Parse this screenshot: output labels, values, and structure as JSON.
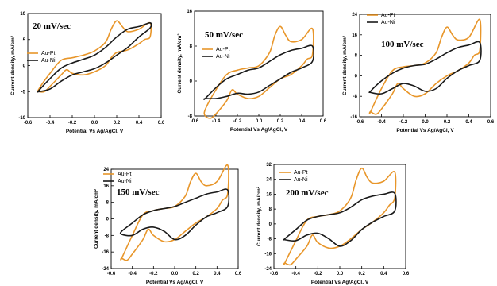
{
  "colors": {
    "au_pt": "#E8962A",
    "au_ni": "#1a1a1a"
  },
  "chart_data": [
    {
      "type": "line",
      "scan_label": "20 mV/sec",
      "xlabel": "Potential Vs Ag/AgCl, V",
      "ylabel": "Current density, mA/cm²",
      "xlim": [
        -0.6,
        0.6
      ],
      "ylim": [
        -10,
        10
      ],
      "xticks": [
        -0.6,
        -0.4,
        -0.2,
        0.0,
        0.2,
        0.4,
        0.6
      ],
      "yticks": [
        -10,
        -5,
        0,
        5,
        10
      ],
      "legend": [
        "Au-Pt",
        "Au-Ni"
      ],
      "series": [
        {
          "name": "Au-Pt",
          "x": [
            -0.5,
            -0.4,
            -0.3,
            -0.2,
            -0.1,
            0.0,
            0.1,
            0.15,
            0.2,
            0.25,
            0.3,
            0.4,
            0.5,
            0.5,
            0.45,
            0.4,
            0.3,
            0.2,
            0.15,
            0.1,
            0.0,
            -0.1,
            -0.2,
            -0.25,
            -0.3,
            -0.4,
            -0.45,
            -0.5
          ],
          "y": [
            -4.5,
            -1.5,
            1.0,
            1.5,
            2.0,
            2.8,
            4.5,
            7.0,
            8.6,
            7.5,
            6.5,
            7.0,
            8.2,
            5.5,
            5.0,
            4.2,
            3.0,
            2.5,
            1.5,
            0.0,
            -1.2,
            -1.8,
            -1.5,
            -0.8,
            -1.8,
            -4.0,
            -5.0,
            -5.0
          ]
        },
        {
          "name": "Au-Ni",
          "x": [
            -0.5,
            -0.4,
            -0.3,
            -0.2,
            -0.1,
            0.0,
            0.1,
            0.2,
            0.3,
            0.4,
            0.5,
            0.5,
            0.4,
            0.3,
            0.2,
            0.1,
            0.0,
            -0.1,
            -0.2,
            -0.3,
            -0.4,
            -0.5
          ],
          "y": [
            -4.8,
            -2.5,
            -0.5,
            0.5,
            1.2,
            2.0,
            3.5,
            5.5,
            7.0,
            7.5,
            8.2,
            7.2,
            5.5,
            3.5,
            2.0,
            0.5,
            -0.6,
            -1.2,
            -1.8,
            -3.0,
            -4.5,
            -5.0
          ]
        }
      ]
    },
    {
      "type": "line",
      "scan_label": "50 mV/sec",
      "xlabel": "Potential Vs Ag/AgCl, V",
      "ylabel": "Current density, mA/cm²",
      "xlim": [
        -0.6,
        0.6
      ],
      "ylim": [
        -8,
        16
      ],
      "xticks": [
        -0.6,
        -0.4,
        -0.2,
        0.0,
        0.2,
        0.4,
        0.6
      ],
      "yticks": [
        -8,
        0,
        8,
        16
      ],
      "legend": [
        "Au-Pt",
        "Au-Ni"
      ],
      "series": [
        {
          "name": "Au-Pt",
          "x": [
            -0.5,
            -0.4,
            -0.3,
            -0.2,
            -0.1,
            0.0,
            0.1,
            0.15,
            0.2,
            0.25,
            0.3,
            0.4,
            0.5,
            0.5,
            0.45,
            0.4,
            0.3,
            0.2,
            0.1,
            0.0,
            -0.1,
            -0.2,
            -0.25,
            -0.3,
            -0.4,
            -0.45,
            -0.5
          ],
          "y": [
            -6.5,
            -2.0,
            1.5,
            2.5,
            3.0,
            3.5,
            6.5,
            10.5,
            12.5,
            10.5,
            9.0,
            9.5,
            12.0,
            6.0,
            5.0,
            3.5,
            1.5,
            0.5,
            -1.5,
            -3.5,
            -4.0,
            -3.0,
            -2.0,
            -4.5,
            -7.5,
            -8.5,
            -8.0
          ]
        },
        {
          "name": "Au-Ni",
          "x": [
            -0.5,
            -0.4,
            -0.3,
            -0.2,
            -0.1,
            0.0,
            0.1,
            0.2,
            0.3,
            0.4,
            0.5,
            0.5,
            0.4,
            0.3,
            0.2,
            0.1,
            0.0,
            -0.1,
            -0.2,
            -0.3,
            -0.4,
            -0.5
          ],
          "y": [
            -4.0,
            -1.5,
            0.5,
            1.5,
            2.5,
            3.0,
            4.5,
            6.0,
            7.0,
            7.5,
            8.0,
            4.5,
            3.0,
            2.0,
            0.5,
            -1.0,
            -2.5,
            -3.0,
            -2.8,
            -3.5,
            -4.0,
            -4.0
          ]
        }
      ]
    },
    {
      "type": "line",
      "scan_label": "100 mV/sec",
      "xlabel": "Potential Vs Ag/AgCl, V",
      "ylabel": "Current density, mA/cm²",
      "xlim": [
        -0.6,
        0.6
      ],
      "ylim": [
        -16,
        24
      ],
      "xticks": [
        -0.6,
        -0.4,
        -0.2,
        0.0,
        0.2,
        0.4,
        0.6
      ],
      "yticks": [
        -16,
        -8,
        0,
        8,
        16,
        24
      ],
      "legend": [
        "Au-Pt",
        "Au-Ni"
      ],
      "series": [
        {
          "name": "Au-Pt",
          "x": [
            -0.5,
            -0.4,
            -0.3,
            -0.2,
            -0.1,
            0.0,
            0.1,
            0.15,
            0.2,
            0.25,
            0.3,
            0.4,
            0.5,
            0.5,
            0.45,
            0.4,
            0.3,
            0.2,
            0.1,
            0.0,
            -0.1,
            -0.2,
            -0.25,
            -0.3,
            -0.4,
            -0.45,
            -0.5
          ],
          "y": [
            -14,
            -5,
            2,
            3.5,
            4,
            5,
            9,
            15,
            19,
            16,
            14,
            15,
            22,
            10,
            8,
            5,
            2,
            0,
            -3,
            -7,
            -8,
            -5,
            -3,
            -7,
            -13,
            -15,
            -14
          ]
        },
        {
          "name": "Au-Ni",
          "x": [
            -0.5,
            -0.4,
            -0.3,
            -0.2,
            -0.1,
            0.0,
            0.1,
            0.2,
            0.3,
            0.4,
            0.5,
            0.5,
            0.4,
            0.3,
            0.2,
            0.1,
            0.0,
            -0.1,
            -0.2,
            -0.3,
            -0.4,
            -0.5
          ],
          "y": [
            -6,
            -2,
            1,
            3,
            4,
            4.5,
            6.5,
            9,
            11,
            12,
            13,
            6,
            4,
            2,
            -1,
            -5,
            -6,
            -4,
            -3,
            -5,
            -7,
            -6.5
          ]
        }
      ]
    },
    {
      "type": "line",
      "scan_label": "150 mV/sec",
      "xlabel": "Potential Vs Ag/AgCl, V",
      "ylabel": "Current density, mA/cm²",
      "xlim": [
        -0.6,
        0.6
      ],
      "ylim": [
        -24,
        24
      ],
      "xticks": [
        -0.6,
        -0.4,
        -0.2,
        0.0,
        0.2,
        0.4,
        0.6
      ],
      "yticks": [
        -24,
        -16,
        -8,
        0,
        8,
        16,
        24
      ],
      "legend": [
        "Au-Pt",
        "Au-Ni"
      ],
      "series": [
        {
          "name": "Au-Pt",
          "x": [
            -0.5,
            -0.4,
            -0.3,
            -0.2,
            -0.1,
            0.0,
            0.1,
            0.15,
            0.2,
            0.25,
            0.3,
            0.4,
            0.5,
            0.5,
            0.45,
            0.4,
            0.3,
            0.2,
            0.1,
            0.0,
            -0.1,
            -0.2,
            -0.25,
            -0.3,
            -0.4,
            -0.45,
            -0.5
          ],
          "y": [
            -19,
            -8,
            2,
            4,
            5,
            6,
            11,
            18,
            22,
            18,
            16,
            18,
            26,
            12,
            9,
            5,
            1,
            -2,
            -6,
            -10,
            -11,
            -8,
            -5,
            -10,
            -17,
            -20,
            -19
          ]
        },
        {
          "name": "Au-Ni",
          "x": [
            -0.5,
            -0.4,
            -0.3,
            -0.2,
            -0.1,
            0.0,
            0.1,
            0.2,
            0.3,
            0.4,
            0.5,
            0.5,
            0.4,
            0.3,
            0.2,
            0.1,
            0.0,
            -0.1,
            -0.2,
            -0.3,
            -0.4,
            -0.5
          ],
          "y": [
            -6,
            -2,
            2,
            4,
            5,
            6,
            8,
            10,
            12,
            13,
            14,
            6,
            3,
            1,
            -3,
            -8,
            -10,
            -6,
            -4,
            -5,
            -8,
            -7.5
          ]
        }
      ]
    },
    {
      "type": "line",
      "scan_label": "200 mV/sec",
      "xlabel": "Potential Vs Ag/AgCl, V",
      "ylabel": "Current density, mA/cm²",
      "xlim": [
        -0.6,
        0.6
      ],
      "ylim": [
        -24,
        32
      ],
      "xticks": [
        -0.6,
        -0.4,
        -0.2,
        0.0,
        0.2,
        0.4,
        0.6
      ],
      "yticks": [
        -24,
        -16,
        -8,
        0,
        8,
        16,
        24,
        32
      ],
      "legend": [
        "Au-Pt",
        "Au-Ni"
      ],
      "series": [
        {
          "name": "Au-Pt",
          "x": [
            -0.5,
            -0.4,
            -0.3,
            -0.2,
            -0.1,
            0.0,
            0.1,
            0.15,
            0.2,
            0.25,
            0.3,
            0.4,
            0.5,
            0.5,
            0.45,
            0.4,
            0.3,
            0.2,
            0.1,
            0.0,
            -0.1,
            -0.2,
            -0.25,
            -0.3,
            -0.4,
            -0.45,
            -0.5
          ],
          "y": [
            -21,
            -9,
            2,
            4,
            5,
            7,
            14,
            24,
            30,
            25,
            22,
            23,
            28,
            14,
            10,
            6,
            1,
            -3,
            -8,
            -12,
            -13,
            -10,
            -6,
            -12,
            -19,
            -22,
            -21
          ]
        },
        {
          "name": "Au-Ni",
          "x": [
            -0.5,
            -0.4,
            -0.3,
            -0.2,
            -0.1,
            0.0,
            0.1,
            0.2,
            0.3,
            0.4,
            0.5,
            0.5,
            0.4,
            0.3,
            0.2,
            0.1,
            0.0,
            -0.1,
            -0.2,
            -0.3,
            -0.4,
            -0.5
          ],
          "y": [
            -8,
            -3,
            2,
            4,
            5,
            6,
            9,
            13,
            15,
            16,
            16.5,
            7,
            4,
            1,
            -3,
            -9,
            -12,
            -8,
            -5,
            -6,
            -9,
            -8.5
          ]
        }
      ]
    }
  ]
}
